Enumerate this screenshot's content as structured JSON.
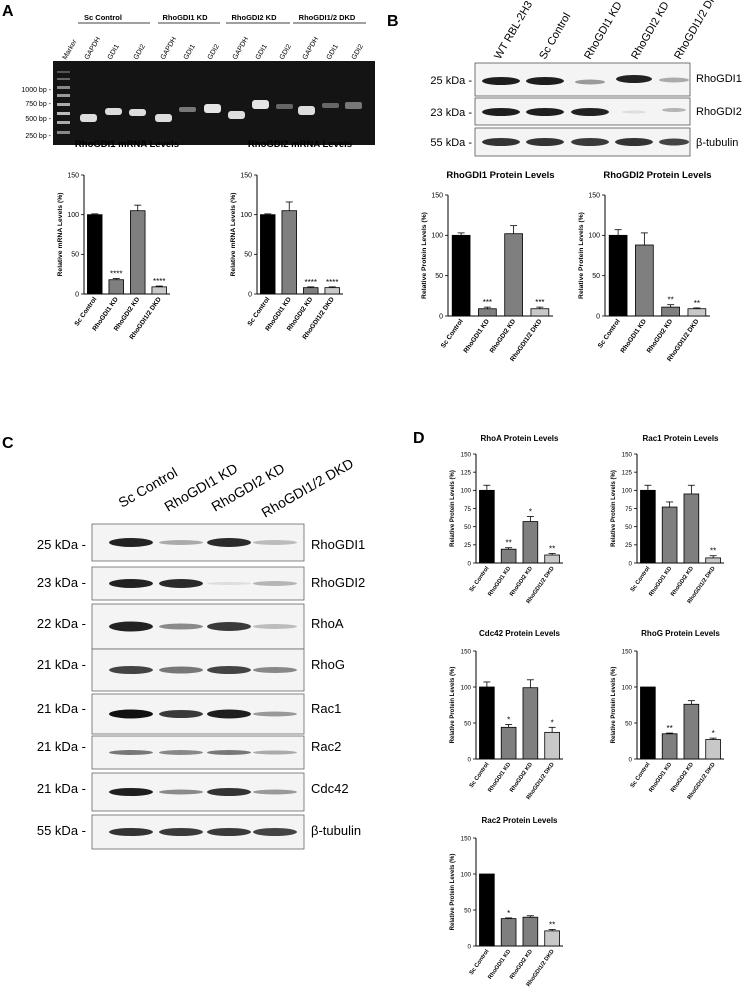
{
  "panel_labels": [
    "A",
    "B",
    "C",
    "D"
  ],
  "gel": {
    "marker_label": "Marker",
    "groups": [
      {
        "name": "Sc Control",
        "lanes": [
          "GAPDH",
          "GDI1",
          "GDI2"
        ]
      },
      {
        "name": "RhoGDI1 KD",
        "lanes": [
          "GAPDH",
          "GDI1",
          "GDI2"
        ]
      },
      {
        "name": "RhoGDI2 KD",
        "lanes": [
          "GAPDH",
          "GDI1",
          "GDI2"
        ]
      },
      {
        "name": "RhoGDI1/2 DKD",
        "lanes": [
          "GAPDH",
          "GDI1",
          "GDI2"
        ]
      }
    ],
    "sizes": [
      "1000 bp -",
      "750 bp -",
      "500 bp -",
      "250 bp -"
    ]
  },
  "blot_b": {
    "lanes": [
      "WT RBL-2H3",
      "Sc Control",
      "RhoGDI1 KD",
      "RhoGDI2 KD",
      "RhoGDI1/2 DKD"
    ],
    "rows": [
      {
        "kda": "25 kDa -",
        "name": "RhoGDI1"
      },
      {
        "kda": "23 kDa -",
        "name": "RhoGDI2"
      },
      {
        "kda": "55 kDa -",
        "name": "β-tubulin"
      }
    ]
  },
  "blot_c": {
    "lanes": [
      "Sc Control",
      "RhoGDI1 KD",
      "RhoGDI2 KD",
      "RhoGDI1/2 DKD"
    ],
    "rows": [
      {
        "kda": "25 kDa -",
        "name": "RhoGDI1"
      },
      {
        "kda": "23 kDa -",
        "name": "RhoGDI2"
      },
      {
        "kda": "22 kDa -",
        "name": "RhoA"
      },
      {
        "kda": "21 kDa -",
        "name": "RhoG"
      },
      {
        "kda": "21 kDa -",
        "name": "Rac1"
      },
      {
        "kda": "21 kDa -",
        "name": "Rac2"
      },
      {
        "kda": "21 kDa -",
        "name": "Cdc42"
      },
      {
        "kda": "55 kDa -",
        "name": "β-tubulin"
      }
    ]
  },
  "chart_data": [
    {
      "id": "a1",
      "type": "bar",
      "title": "RhoGDI1 mRNA Levels",
      "ylabel": "Relative mRNA Levels (%)",
      "categories": [
        "Sc Control",
        "RhoGDI1 KD",
        "RhoGDI2 KD",
        "RhoGDI1/2 DKD"
      ],
      "values": [
        100,
        18,
        105,
        9
      ],
      "errors": [
        1,
        1.5,
        7,
        1
      ],
      "sig": [
        "",
        "****",
        "",
        "****"
      ],
      "colors": [
        "#000000",
        "#7f7f7f",
        "#7f7f7f",
        "#c8c8c8"
      ],
      "ylim": [
        0,
        150
      ],
      "yticks": [
        0,
        50,
        100,
        150
      ]
    },
    {
      "id": "a2",
      "type": "bar",
      "title": "RhoGDI2 mRNA Levels",
      "ylabel": "Relative mRNA Levels (%)",
      "categories": [
        "Sc Control",
        "RhoGDI1 KD",
        "RhoGDI2 KD",
        "RhoGDI1/2 DKD"
      ],
      "values": [
        100,
        105,
        8,
        8
      ],
      "errors": [
        1,
        11,
        1,
        1
      ],
      "sig": [
        "",
        "",
        "****",
        "****"
      ],
      "colors": [
        "#000000",
        "#7f7f7f",
        "#7f7f7f",
        "#c8c8c8"
      ],
      "ylim": [
        0,
        150
      ],
      "yticks": [
        0,
        50,
        100,
        150
      ]
    },
    {
      "id": "b1",
      "type": "bar",
      "title": "RhoGDI1 Protein Levels",
      "ylabel": "Relative Protein Levels (%)",
      "categories": [
        "Sc Control",
        "RhoGDI1 KD",
        "RhoGDI2 KD",
        "RhoGDI1/2 DKD"
      ],
      "values": [
        100,
        9,
        102,
        9
      ],
      "errors": [
        3,
        2,
        10,
        2
      ],
      "sig": [
        "",
        "***",
        "",
        "***"
      ],
      "colors": [
        "#000000",
        "#7f7f7f",
        "#7f7f7f",
        "#c8c8c8"
      ],
      "ylim": [
        0,
        150
      ],
      "yticks": [
        0,
        50,
        100,
        150
      ]
    },
    {
      "id": "b2",
      "type": "bar",
      "title": "RhoGDI2 Protein Levels",
      "ylabel": "Relative Protein Levels (%)",
      "categories": [
        "Sc Control",
        "RhoGDI1 KD",
        "RhoGDI2 KD",
        "RhoGDI1/2 DKD"
      ],
      "values": [
        100,
        88,
        11,
        9
      ],
      "errors": [
        7,
        15,
        3,
        1
      ],
      "sig": [
        "",
        "",
        "**",
        "**"
      ],
      "colors": [
        "#000000",
        "#7f7f7f",
        "#7f7f7f",
        "#c8c8c8"
      ],
      "ylim": [
        0,
        150
      ],
      "yticks": [
        0,
        50,
        100,
        150
      ]
    },
    {
      "id": "d1",
      "type": "bar",
      "title": "RhoA Protein Levels",
      "ylabel": "Relative Protein Levels (%)",
      "categories": [
        "Sc Control",
        "RhoGDI1 KD",
        "RhoGDI2 KD",
        "RhoGDI1/2 DKD"
      ],
      "values": [
        100,
        19,
        57,
        11
      ],
      "errors": [
        7,
        2,
        7,
        2
      ],
      "sig": [
        "",
        "**",
        "*",
        "**"
      ],
      "colors": [
        "#000000",
        "#7f7f7f",
        "#7f7f7f",
        "#c8c8c8"
      ],
      "ylim": [
        0,
        150
      ],
      "yticks": [
        0,
        25,
        50,
        75,
        100,
        125,
        150
      ]
    },
    {
      "id": "d2",
      "type": "bar",
      "title": "Rac1 Protein Levels",
      "ylabel": "Relative Protein Levels (%)",
      "categories": [
        "Sc Control",
        "RhoGDI1 KD",
        "RhoGDI2 KD",
        "RhoGDI1/2 DKD"
      ],
      "values": [
        100,
        77,
        95,
        7
      ],
      "errors": [
        7,
        7,
        12,
        3
      ],
      "sig": [
        "",
        "",
        "",
        "**"
      ],
      "colors": [
        "#000000",
        "#7f7f7f",
        "#7f7f7f",
        "#c8c8c8"
      ],
      "ylim": [
        0,
        150
      ],
      "yticks": [
        0,
        25,
        50,
        75,
        100,
        125,
        150
      ]
    },
    {
      "id": "d3",
      "type": "bar",
      "title": "Cdc42 Protein Levels",
      "ylabel": "Relative Protein Levels (%)",
      "categories": [
        "Sc Control",
        "RhoGDI1 KD",
        "RhoGDI2 KD",
        "RhoGDI1/2 DKD"
      ],
      "values": [
        100,
        44,
        99,
        37
      ],
      "errors": [
        7,
        4,
        11,
        7
      ],
      "sig": [
        "",
        "*",
        "",
        "*"
      ],
      "colors": [
        "#000000",
        "#7f7f7f",
        "#7f7f7f",
        "#c8c8c8"
      ],
      "ylim": [
        0,
        150
      ],
      "yticks": [
        0,
        50,
        100,
        150
      ]
    },
    {
      "id": "d4",
      "type": "bar",
      "title": "RhoG Protein Levels",
      "ylabel": "Relative Protein Levels (%)",
      "categories": [
        "Sc Control",
        "RhoGDI1 KD",
        "RhoGDI2 KD",
        "RhoGDI1/2 DKD"
      ],
      "values": [
        100,
        35,
        76,
        27
      ],
      "errors": [
        0,
        1,
        5,
        2
      ],
      "sig": [
        "",
        "**",
        "",
        "*"
      ],
      "colors": [
        "#000000",
        "#7f7f7f",
        "#7f7f7f",
        "#c8c8c8"
      ],
      "ylim": [
        0,
        150
      ],
      "yticks": [
        0,
        50,
        100,
        150
      ]
    },
    {
      "id": "d5",
      "type": "bar",
      "title": "Rac2 Protein Levels",
      "ylabel": "Relative Protein Levels (%)",
      "categories": [
        "Sc Control",
        "RhoGDI1 KD",
        "RhoGDI2 KD",
        "RhoGDI1/2 DKD"
      ],
      "values": [
        100,
        38,
        40,
        21
      ],
      "errors": [
        0,
        1,
        2,
        2
      ],
      "sig": [
        "",
        "*",
        "",
        "**"
      ],
      "colors": [
        "#000000",
        "#7f7f7f",
        "#7f7f7f",
        "#c8c8c8"
      ],
      "ylim": [
        0,
        150
      ],
      "yticks": [
        0,
        50,
        100,
        150
      ]
    }
  ]
}
